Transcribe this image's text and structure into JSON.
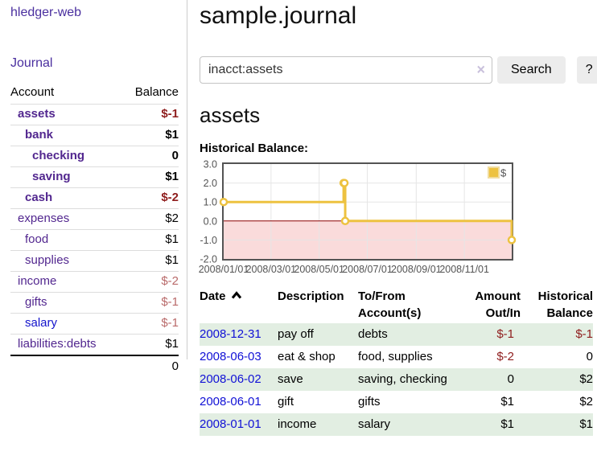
{
  "app": {
    "title": "hledger-web",
    "nav_journal": "Journal"
  },
  "sidebar": {
    "accounts_header": {
      "account": "Account",
      "balance": "Balance"
    },
    "accounts": [
      {
        "name": "assets",
        "balance": "$-1",
        "indent": 1,
        "bold": true,
        "neg": "strong",
        "link": "visited"
      },
      {
        "name": "bank",
        "balance": "$1",
        "indent": 2,
        "bold": true,
        "neg": "none",
        "link": "visited"
      },
      {
        "name": "checking",
        "balance": "0",
        "indent": 3,
        "bold": true,
        "neg": "none",
        "link": "visited"
      },
      {
        "name": "saving",
        "balance": "$1",
        "indent": 3,
        "bold": true,
        "neg": "none",
        "link": "visited"
      },
      {
        "name": "cash",
        "balance": "$-2",
        "indent": 2,
        "bold": true,
        "neg": "strong",
        "link": "visited"
      },
      {
        "name": "expenses",
        "balance": "$2",
        "indent": 1,
        "bold": false,
        "neg": "none",
        "link": "visited"
      },
      {
        "name": "food",
        "balance": "$1",
        "indent": 2,
        "bold": false,
        "neg": "none",
        "link": "visited"
      },
      {
        "name": "supplies",
        "balance": "$1",
        "indent": 2,
        "bold": false,
        "neg": "none",
        "link": "visited"
      },
      {
        "name": "income",
        "balance": "$-2",
        "indent": 1,
        "bold": false,
        "neg": "soft",
        "link": "visited"
      },
      {
        "name": "gifts",
        "balance": "$-1",
        "indent": 2,
        "bold": false,
        "neg": "soft",
        "link": "visited"
      },
      {
        "name": "salary",
        "balance": "$-1",
        "indent": 2,
        "bold": false,
        "neg": "soft",
        "link": "unvisited"
      },
      {
        "name": "liabilities:debts",
        "balance": "$1",
        "indent": 1,
        "bold": false,
        "neg": "none",
        "link": "visited"
      }
    ],
    "total": "0"
  },
  "header": {
    "title": "sample.journal"
  },
  "search": {
    "query": "inacct:assets",
    "clear_icon": "×",
    "button": "Search",
    "help_button": "?"
  },
  "main": {
    "heading": "assets",
    "chart_title": "Historical Balance:"
  },
  "chart_data": {
    "type": "line",
    "step": true,
    "title": "Historical Balance:",
    "series": [
      {
        "name": "$",
        "color": "#edc240",
        "points": [
          {
            "x": "2008-01-01",
            "y": 1
          },
          {
            "x": "2008-06-01",
            "y": 2
          },
          {
            "x": "2008-06-02",
            "y": 2
          },
          {
            "x": "2008-06-03",
            "y": 0
          },
          {
            "x": "2008-12-31",
            "y": -1
          }
        ]
      }
    ],
    "x_range": [
      "2008-01-01",
      "2008-12-31"
    ],
    "x_ticks": [
      "2008/01/01",
      "2008/03/01",
      "2008/05/01",
      "2008/07/01",
      "2008/09/01",
      "2008/11/01"
    ],
    "y_ticks": [
      3.0,
      2.0,
      1.0,
      0.0,
      -1.0,
      -2.0
    ],
    "ylim": [
      -2,
      3
    ],
    "grid": true,
    "negative_region_fill": "#fadbdb",
    "zero_line_color": "#8b0000",
    "border_color": "#545454",
    "gridline_color": "#e6e6e6",
    "axis_label_color": "#545454",
    "legend": {
      "label": "$",
      "position": "top-right"
    }
  },
  "register": {
    "columns": [
      "Date",
      "Description",
      "To/From Account(s)",
      "Amount Out/In",
      "Historical Balance"
    ],
    "rows": [
      {
        "date": "2008-12-31",
        "description": "pay off",
        "accounts": "debts",
        "amount": "$-1",
        "balance": "$-1"
      },
      {
        "date": "2008-06-03",
        "description": "eat & shop",
        "accounts": "food, supplies",
        "amount": "$-2",
        "balance": "0"
      },
      {
        "date": "2008-06-02",
        "description": "save",
        "accounts": "saving, checking",
        "amount": "0",
        "balance": "$2"
      },
      {
        "date": "2008-06-01",
        "description": "gift",
        "accounts": "gifts",
        "amount": "$1",
        "balance": "$2"
      },
      {
        "date": "2008-01-01",
        "description": "income",
        "accounts": "salary",
        "amount": "$1",
        "balance": "$1"
      }
    ]
  }
}
